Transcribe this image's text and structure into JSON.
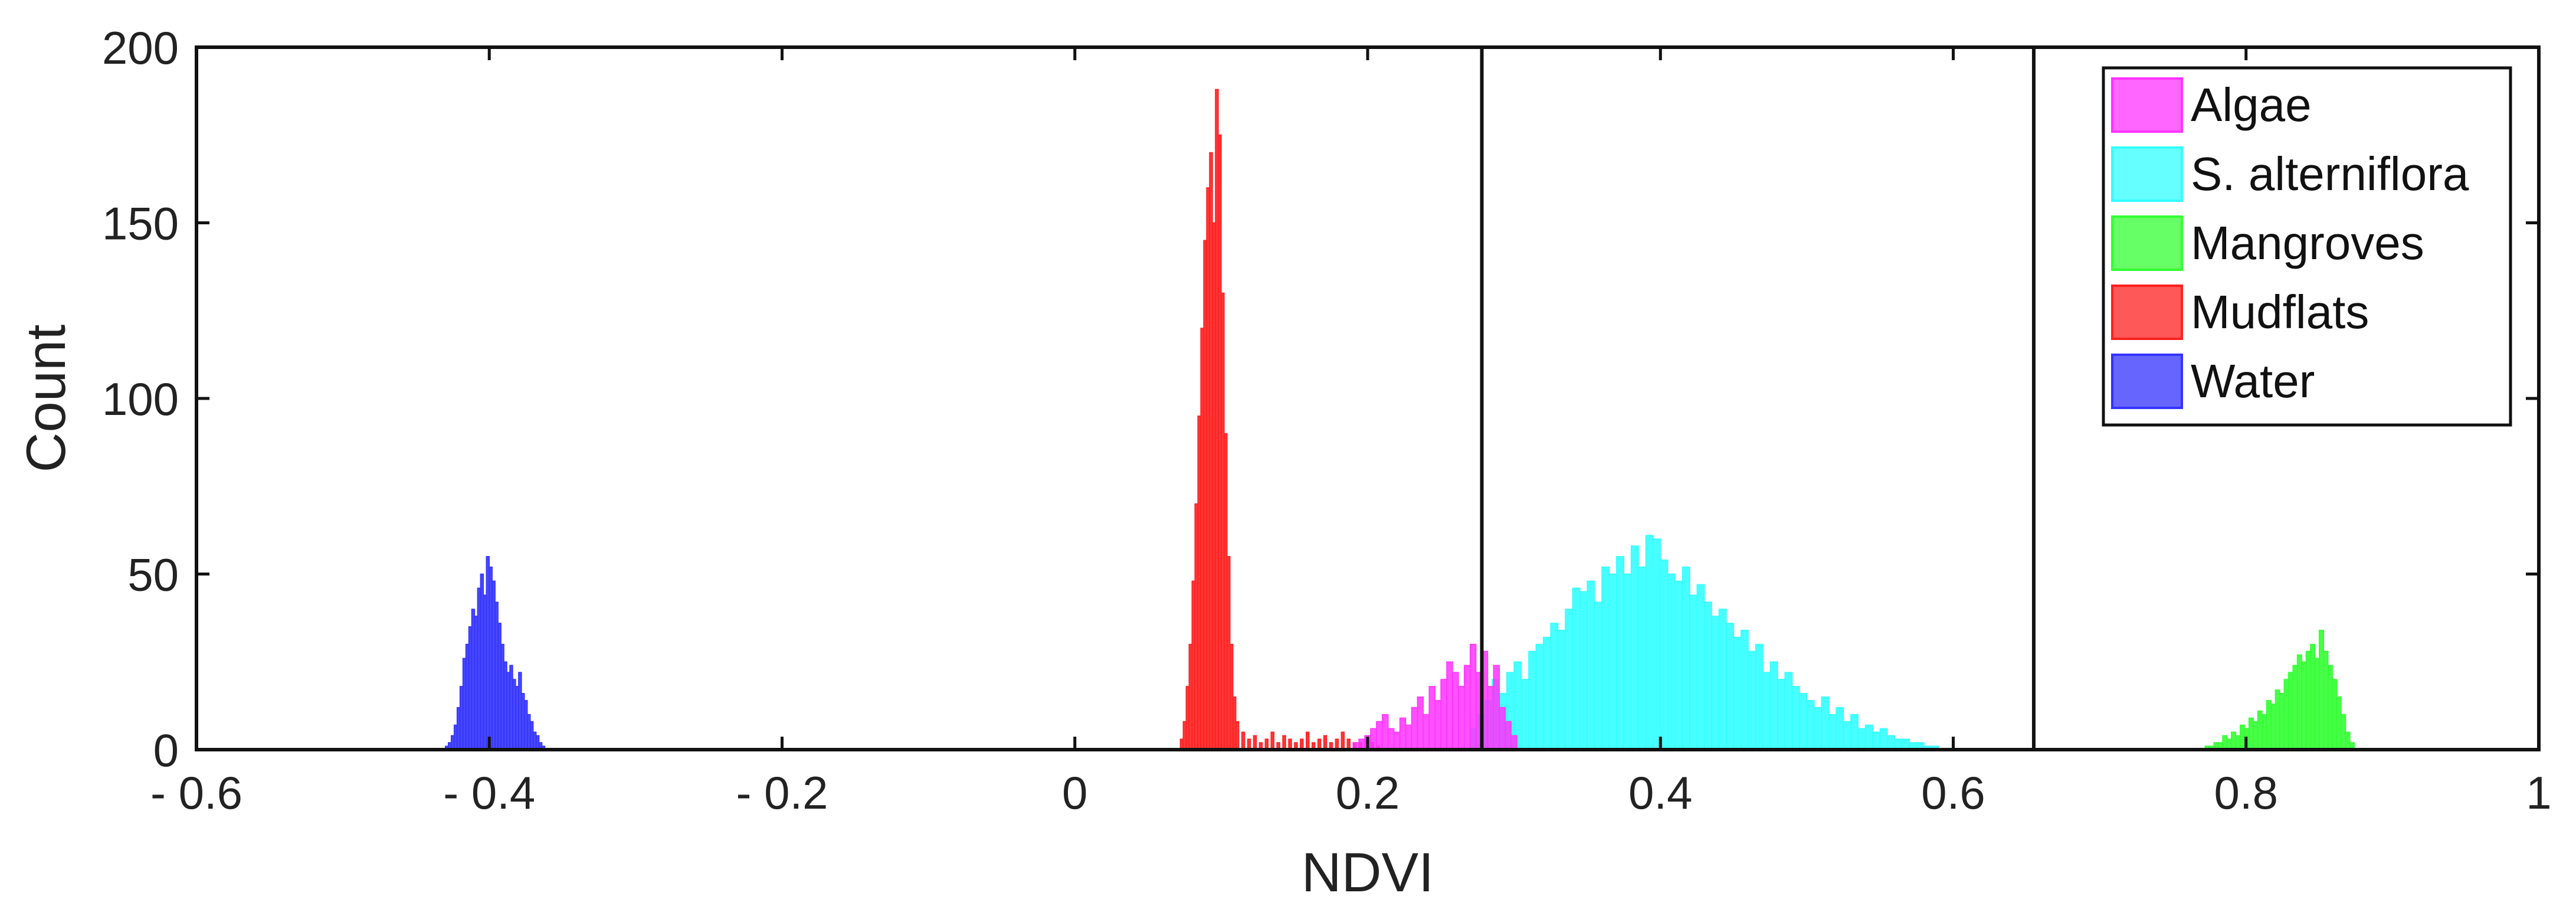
{
  "chart_data": {
    "type": "histogram",
    "title": "",
    "xlabel": "NDVI",
    "ylabel": "Count",
    "xlim": [
      -0.6,
      1.0
    ],
    "ylim": [
      0,
      200
    ],
    "xticks": [
      -0.6,
      -0.4,
      -0.2,
      0,
      0.2,
      0.4,
      0.6,
      0.8,
      1.0
    ],
    "xtick_labels": [
      "- 0.6",
      "- 0.4",
      "- 0.2",
      "0",
      "0.2",
      "0.4",
      "0.6",
      "0.8",
      "1"
    ],
    "yticks": [
      0,
      50,
      100,
      150,
      200
    ],
    "ytick_labels": [
      "0",
      "50",
      "100",
      "150",
      "200"
    ],
    "threshold_lines": [
      0.278,
      0.655
    ],
    "legend_position": "top-right",
    "series": [
      {
        "name": "Algae",
        "color": "#ff33ff",
        "bin_width": 0.004,
        "x": [
          0.19,
          0.194,
          0.198,
          0.202,
          0.206,
          0.21,
          0.214,
          0.218,
          0.222,
          0.226,
          0.23,
          0.234,
          0.238,
          0.242,
          0.246,
          0.25,
          0.254,
          0.258,
          0.262,
          0.266,
          0.27,
          0.274,
          0.278,
          0.282,
          0.286,
          0.29,
          0.294,
          0.298
        ],
        "values": [
          2,
          3,
          4,
          6,
          8,
          10,
          6,
          5,
          9,
          7,
          12,
          15,
          10,
          18,
          14,
          20,
          25,
          22,
          18,
          24,
          30,
          22,
          28,
          18,
          24,
          12,
          8,
          4
        ]
      },
      {
        "name": "S. alterniflora",
        "color": "#33ffff",
        "bin_width": 0.005,
        "x": [
          0.27,
          0.275,
          0.28,
          0.285,
          0.29,
          0.295,
          0.3,
          0.305,
          0.31,
          0.315,
          0.32,
          0.325,
          0.33,
          0.335,
          0.34,
          0.345,
          0.35,
          0.355,
          0.36,
          0.365,
          0.37,
          0.375,
          0.38,
          0.385,
          0.39,
          0.395,
          0.4,
          0.405,
          0.41,
          0.415,
          0.42,
          0.425,
          0.43,
          0.435,
          0.44,
          0.445,
          0.45,
          0.455,
          0.46,
          0.465,
          0.47,
          0.475,
          0.48,
          0.485,
          0.49,
          0.495,
          0.5,
          0.505,
          0.51,
          0.515,
          0.52,
          0.525,
          0.53,
          0.535,
          0.54,
          0.545,
          0.55,
          0.555,
          0.56,
          0.565,
          0.57,
          0.575,
          0.58,
          0.585
        ],
        "values": [
          6,
          10,
          14,
          20,
          16,
          22,
          25,
          20,
          28,
          30,
          32,
          36,
          34,
          40,
          46,
          45,
          48,
          42,
          52,
          50,
          55,
          50,
          58,
          52,
          61,
          60,
          54,
          50,
          48,
          52,
          44,
          47,
          42,
          38,
          40,
          36,
          32,
          34,
          28,
          30,
          22,
          25,
          20,
          22,
          18,
          16,
          14,
          12,
          15,
          10,
          12,
          8,
          10,
          6,
          7,
          5,
          6,
          4,
          3,
          3,
          2,
          2,
          1,
          1
        ]
      },
      {
        "name": "Mangroves",
        "color": "#33ff33",
        "bin_width": 0.003,
        "x": [
          0.772,
          0.775,
          0.778,
          0.781,
          0.784,
          0.787,
          0.79,
          0.793,
          0.796,
          0.799,
          0.802,
          0.805,
          0.808,
          0.811,
          0.814,
          0.817,
          0.82,
          0.823,
          0.826,
          0.829,
          0.832,
          0.835,
          0.838,
          0.841,
          0.844,
          0.847,
          0.85,
          0.853,
          0.856,
          0.859,
          0.862,
          0.865,
          0.868,
          0.871
        ],
        "values": [
          1,
          1,
          2,
          2,
          4,
          3,
          5,
          4,
          7,
          6,
          9,
          8,
          11,
          10,
          14,
          13,
          17,
          16,
          20,
          22,
          24,
          27,
          25,
          28,
          30,
          26,
          34,
          28,
          24,
          20,
          15,
          10,
          5,
          2
        ]
      },
      {
        "name": "Mudflats",
        "color": "#ff2020",
        "bin_width": 0.002,
        "x": [
          0.072,
          0.074,
          0.076,
          0.078,
          0.08,
          0.082,
          0.084,
          0.086,
          0.088,
          0.09,
          0.092,
          0.094,
          0.096,
          0.098,
          0.1,
          0.102,
          0.104,
          0.106,
          0.108,
          0.11,
          0.114,
          0.118,
          0.122,
          0.126,
          0.13,
          0.134,
          0.138,
          0.142,
          0.146,
          0.15,
          0.154,
          0.158,
          0.162,
          0.166,
          0.17,
          0.174,
          0.178,
          0.182,
          0.186,
          0.19,
          0.194,
          0.198,
          0.202,
          0.206
        ],
        "values": [
          3,
          8,
          18,
          30,
          48,
          70,
          95,
          120,
          145,
          160,
          170,
          150,
          188,
          175,
          130,
          90,
          55,
          30,
          15,
          8,
          5,
          3,
          4,
          2,
          3,
          5,
          2,
          4,
          3,
          2,
          3,
          5,
          2,
          3,
          4,
          2,
          3,
          5,
          3,
          2,
          2,
          3,
          2,
          1
        ]
      },
      {
        "name": "Water",
        "color": "#3333ff",
        "bin_width": 0.002,
        "x": [
          -0.43,
          -0.428,
          -0.426,
          -0.424,
          -0.422,
          -0.42,
          -0.418,
          -0.416,
          -0.414,
          -0.412,
          -0.41,
          -0.408,
          -0.406,
          -0.404,
          -0.402,
          -0.4,
          -0.398,
          -0.396,
          -0.394,
          -0.392,
          -0.39,
          -0.388,
          -0.386,
          -0.384,
          -0.382,
          -0.38,
          -0.378,
          -0.376,
          -0.374,
          -0.372,
          -0.37,
          -0.368,
          -0.366,
          -0.364
        ],
        "values": [
          1,
          2,
          4,
          7,
          12,
          18,
          26,
          30,
          35,
          40,
          38,
          46,
          50,
          44,
          55,
          52,
          48,
          42,
          36,
          30,
          25,
          22,
          24,
          20,
          18,
          22,
          16,
          14,
          10,
          8,
          5,
          4,
          2,
          1
        ]
      }
    ]
  }
}
